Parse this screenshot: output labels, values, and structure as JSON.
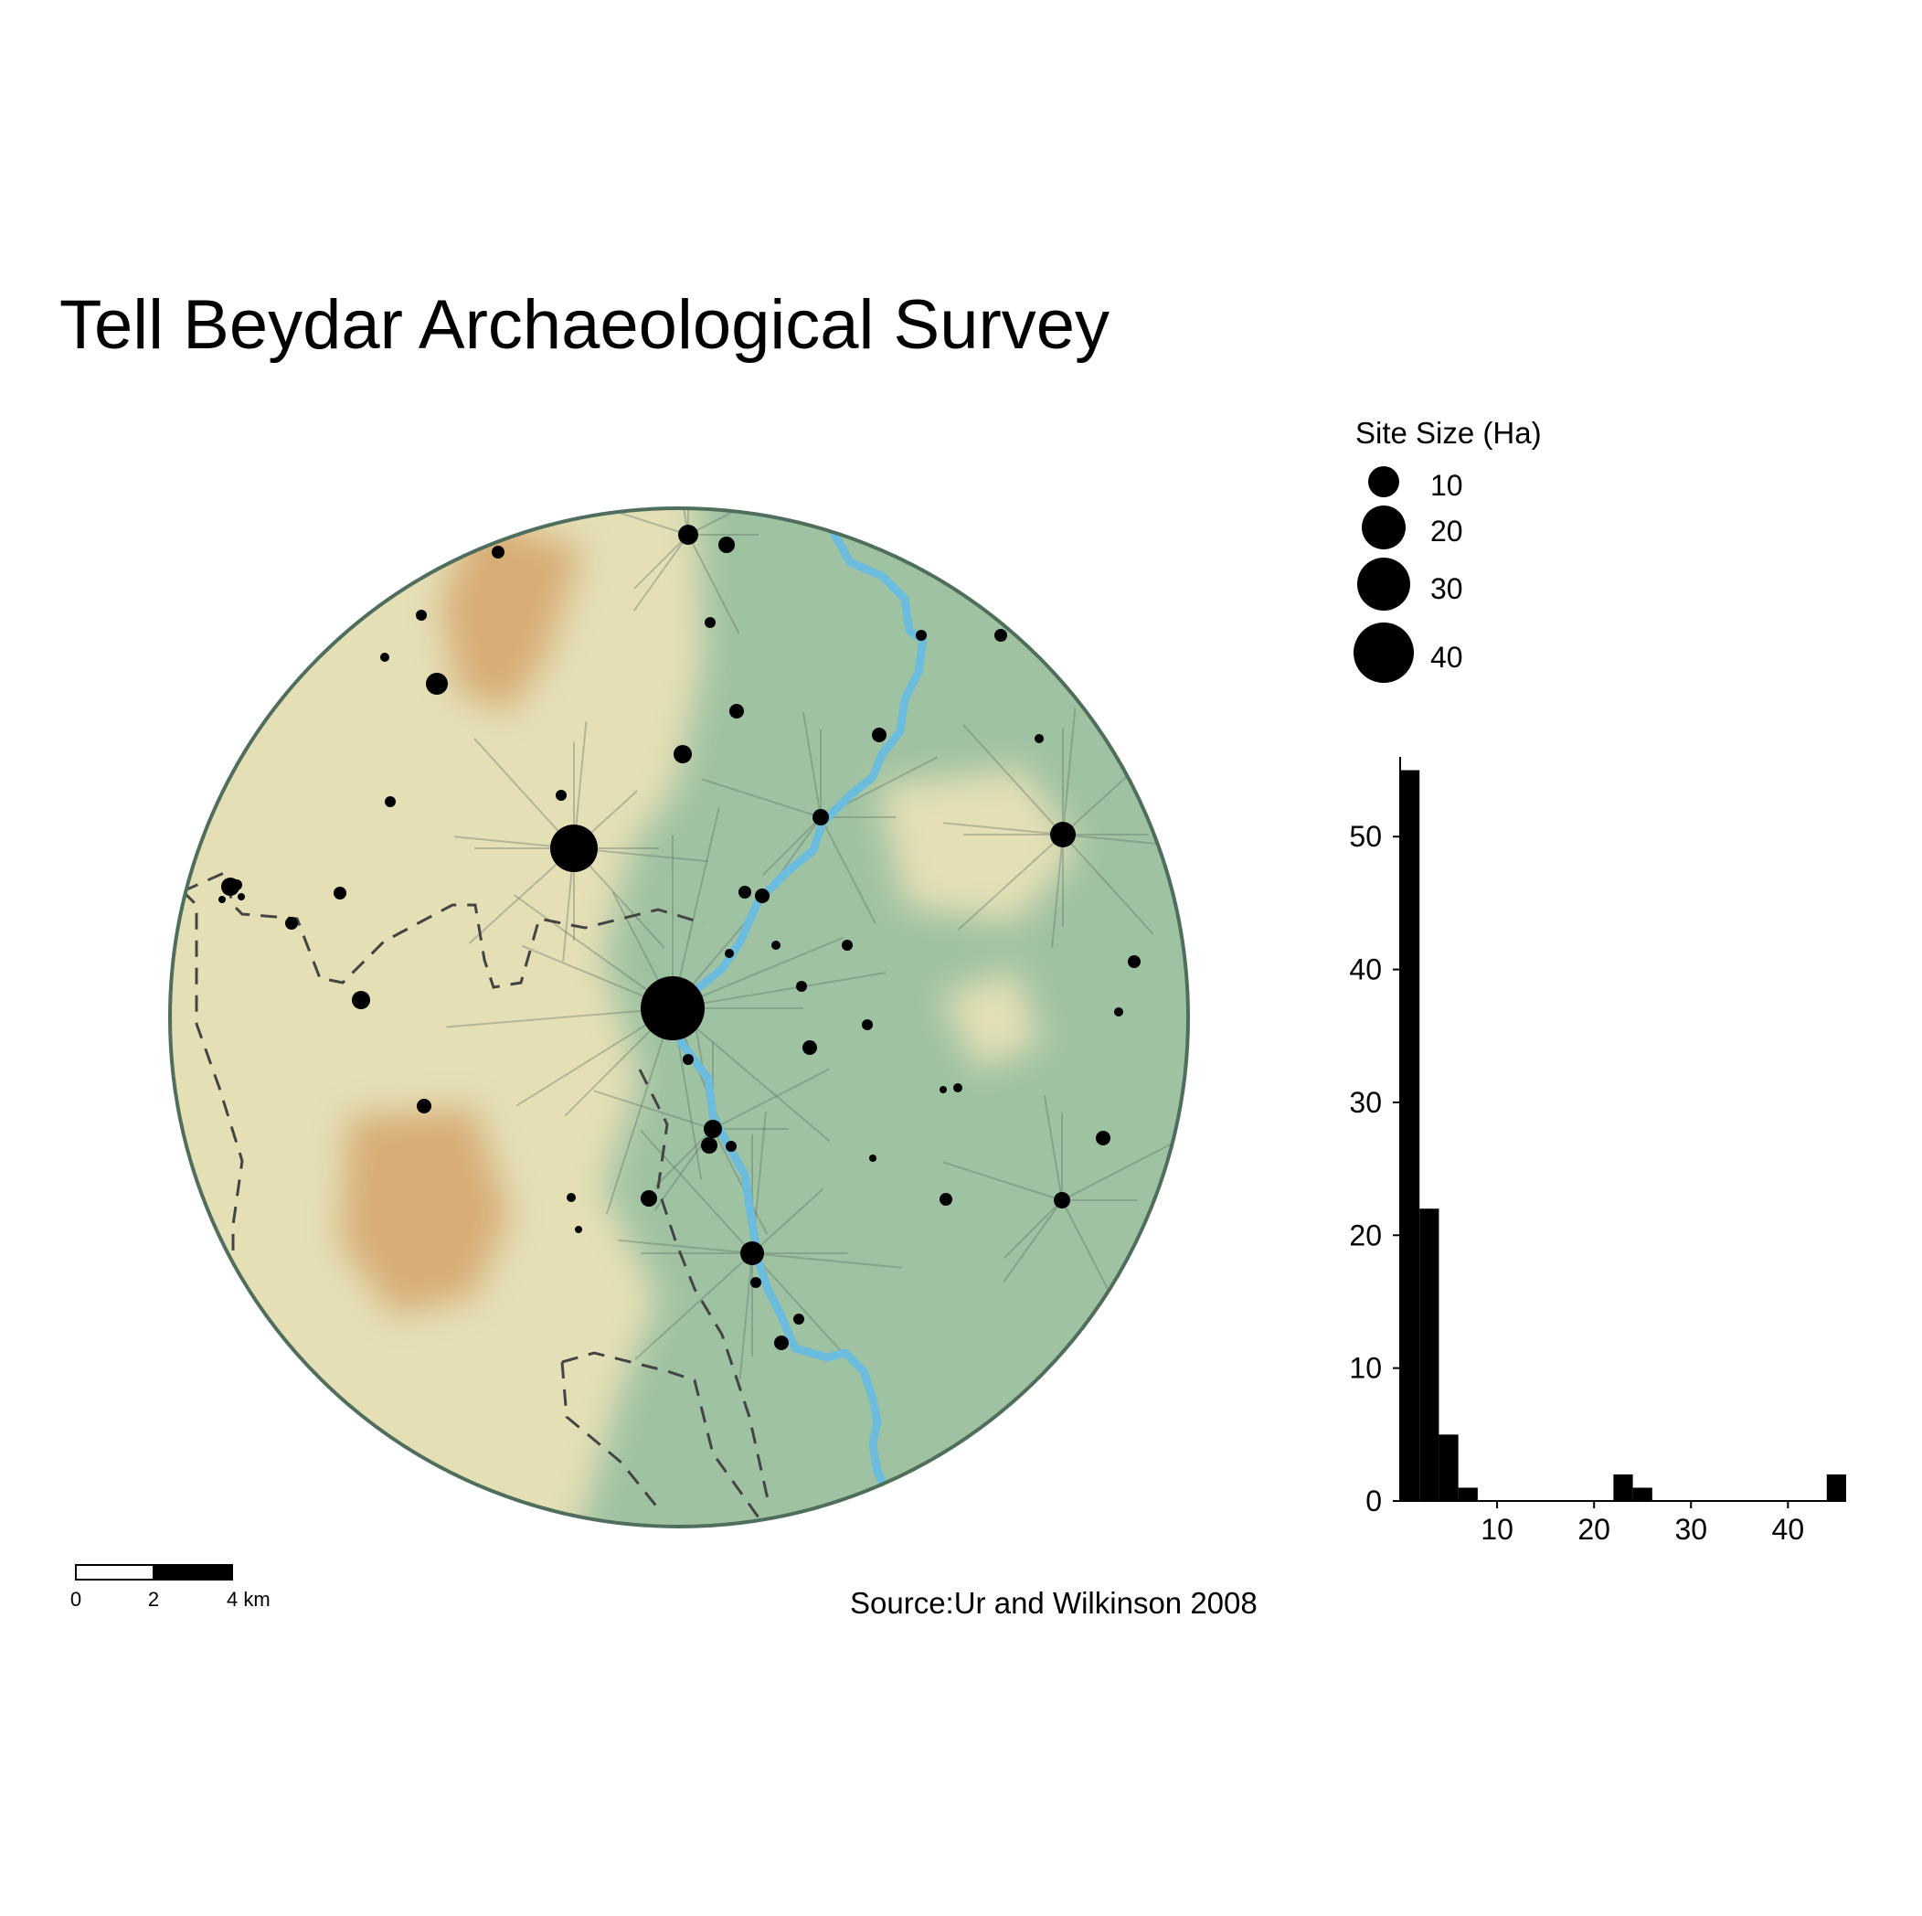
{
  "title": "Tell Beydar Archaeological Survey",
  "source": "Source:Ur and Wilkinson 2008",
  "colors": {
    "lowland": "#9fc2a2",
    "midland": "#e4dfb5",
    "highland": "#d8ad76",
    "river": "#6bbcdd",
    "border": "#4f6e5c",
    "dots": "#000000"
  },
  "legend": {
    "title": "Site Size (Ha)",
    "entries": [
      {
        "label": "10",
        "value": 10
      },
      {
        "label": "20",
        "value": 20
      },
      {
        "label": "30",
        "value": 30
      },
      {
        "label": "40",
        "value": 40
      }
    ]
  },
  "scalebar": {
    "labels": [
      "0",
      "2",
      "4 km"
    ]
  },
  "chart_data": {
    "type": "bar",
    "title": "",
    "xlabel": "",
    "ylabel": "",
    "bin_width": 2,
    "bins": [
      {
        "x0": 0,
        "x1": 2,
        "count": 55
      },
      {
        "x0": 2,
        "x1": 4,
        "count": 22
      },
      {
        "x0": 4,
        "x1": 6,
        "count": 5
      },
      {
        "x0": 6,
        "x1": 8,
        "count": 1
      },
      {
        "x0": 22,
        "x1": 24,
        "count": 2
      },
      {
        "x0": 24,
        "x1": 26,
        "count": 1
      },
      {
        "x0": 44,
        "x1": 46,
        "count": 2
      }
    ],
    "xticks": [
      10,
      20,
      30,
      40
    ],
    "yticks": [
      0,
      10,
      20,
      30,
      40,
      50
    ],
    "xlim": [
      0,
      46
    ],
    "ylim": [
      0,
      56
    ]
  }
}
